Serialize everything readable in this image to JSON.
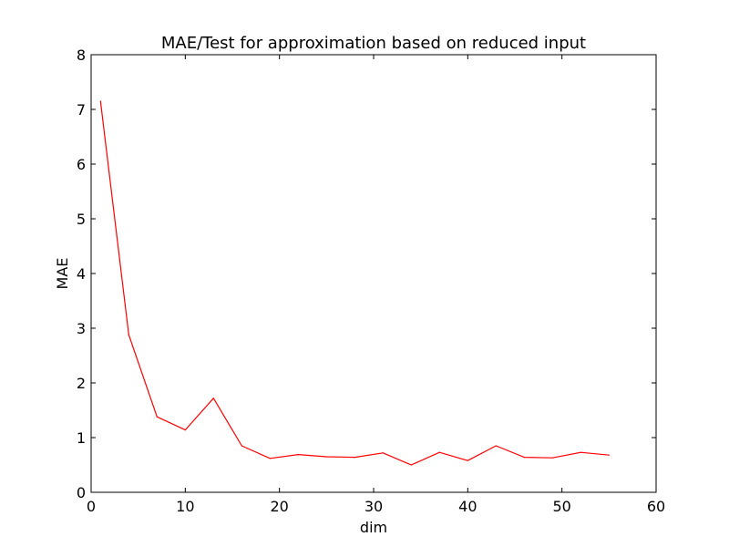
{
  "chart_data": {
    "type": "line",
    "title": "MAE/Test for approximation based on reduced input",
    "xlabel": "dim",
    "ylabel": "MAE",
    "xlim": [
      0,
      60
    ],
    "ylim": [
      0,
      8
    ],
    "xticks": [
      0,
      10,
      20,
      30,
      40,
      50,
      60
    ],
    "yticks": [
      0,
      1,
      2,
      3,
      4,
      5,
      6,
      7,
      8
    ],
    "xtick_labels": [
      "0",
      "10",
      "20",
      "30",
      "40",
      "50",
      "60"
    ],
    "ytick_labels": [
      "0",
      "1",
      "2",
      "3",
      "4",
      "5",
      "6",
      "7",
      "8"
    ],
    "grid": false,
    "series": [
      {
        "color": "#ff0000",
        "x": [
          1,
          4,
          7,
          10,
          13,
          16,
          19,
          22,
          25,
          28,
          31,
          34,
          37,
          40,
          43,
          46,
          49,
          52,
          55
        ],
        "y": [
          7.15,
          2.88,
          1.38,
          1.14,
          1.72,
          0.85,
          0.62,
          0.69,
          0.65,
          0.64,
          0.72,
          0.5,
          0.73,
          0.58,
          0.85,
          0.64,
          0.63,
          0.73,
          0.68
        ]
      }
    ]
  }
}
